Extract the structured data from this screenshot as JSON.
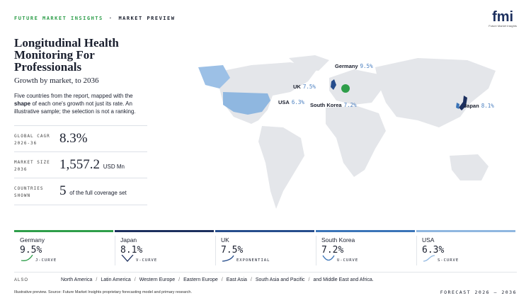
{
  "header": {
    "brand": "FUTURE MARKET INSIGHTS",
    "separator": "·",
    "section": "MARKET PREVIEW"
  },
  "logo": {
    "mark": "fmi",
    "caption": "Future Market Insights"
  },
  "title": "Longitudinal Health Monitoring For Professionals",
  "subtitle": "Growth by market, to 2036",
  "description": {
    "before": "Five countries from the report, mapped with the ",
    "emphasis": "shape",
    "after": " of each one's growth not just its rate. An illustrative sample; the selection is not a ranking."
  },
  "stats": [
    {
      "label": "GLOBAL CAGR 2026-36",
      "value": "8.3%"
    },
    {
      "label": "MARKET SIZE 2036",
      "value": "1,557.2",
      "unit": "USD Mn"
    },
    {
      "label": "COUNTRIES SHOWN",
      "value": "5",
      "unit": "of the full coverage set"
    }
  ],
  "markets": [
    {
      "name": "Germany",
      "cagr": "9.5%",
      "curve": "J-CURVE",
      "color": "#2e9e4a"
    },
    {
      "name": "Japan",
      "cagr": "8.1%",
      "curve": "V-CURVE",
      "color": "#1c2f5e"
    },
    {
      "name": "UK",
      "cagr": "7.5%",
      "curve": "EXPONENTIAL",
      "color": "#264d8c"
    },
    {
      "name": "South Korea",
      "cagr": "7.2%",
      "curve": "U-CURVE",
      "color": "#3a74b8"
    },
    {
      "name": "USA",
      "cagr": "6.3%",
      "curve": "S-CURVE",
      "color": "#8fb7e0"
    }
  ],
  "also": {
    "label": "ALSO",
    "regions": [
      "North America",
      "Latin America",
      "Western Europe",
      "Eastern Europe",
      "East Asia",
      "South Asia and Pacific",
      "and Middle East and Africa."
    ],
    "separator": "/"
  },
  "footer": {
    "source": "Illustrative preview. Source: Future Market Insights proprietary forecasting model and primary research.",
    "forecast": "FORECAST 2026 – 2036"
  }
}
